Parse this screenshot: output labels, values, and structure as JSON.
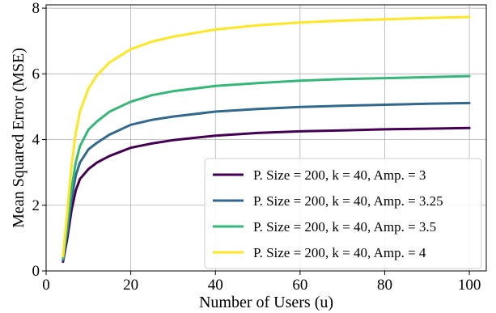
{
  "chart_data": {
    "type": "line",
    "title": "",
    "xlabel": "Number of Users (u)",
    "ylabel": "Mean Squared Error (MSE)",
    "xlim": [
      0,
      104
    ],
    "ylim": [
      0,
      8.1
    ],
    "xticks": [
      0,
      20,
      40,
      60,
      80,
      100
    ],
    "yticks": [
      0,
      2,
      4,
      6,
      8
    ],
    "grid": true,
    "legend_position": "lower-right",
    "x": [
      4,
      5,
      6,
      7,
      8,
      10,
      12,
      15,
      20,
      25,
      30,
      40,
      50,
      60,
      70,
      80,
      90,
      100
    ],
    "series": [
      {
        "name": "P. Size = 200, k = 40, Amp. = 3",
        "color": "#440154",
        "values": [
          0.28,
          1.0,
          1.85,
          2.45,
          2.8,
          3.1,
          3.3,
          3.5,
          3.75,
          3.88,
          3.98,
          4.12,
          4.2,
          4.25,
          4.28,
          4.31,
          4.33,
          4.35
        ]
      },
      {
        "name": "P. Size = 200, k = 40, Amp. = 3.25",
        "color": "#31688e",
        "values": [
          0.33,
          1.2,
          2.2,
          2.9,
          3.3,
          3.7,
          3.9,
          4.15,
          4.45,
          4.6,
          4.7,
          4.85,
          4.93,
          4.99,
          5.03,
          5.06,
          5.09,
          5.11
        ]
      },
      {
        "name": "P. Size = 200, k = 40, Amp. = 3.5",
        "color": "#35b779",
        "values": [
          0.38,
          1.4,
          2.5,
          3.3,
          3.8,
          4.3,
          4.55,
          4.85,
          5.15,
          5.35,
          5.47,
          5.63,
          5.72,
          5.79,
          5.84,
          5.87,
          5.9,
          5.93
        ]
      },
      {
        "name": "P. Size = 200, k = 40, Amp. = 4",
        "color": "#fde725",
        "values": [
          0.45,
          1.8,
          3.2,
          4.2,
          4.85,
          5.55,
          5.95,
          6.35,
          6.75,
          6.98,
          7.13,
          7.35,
          7.48,
          7.56,
          7.62,
          7.66,
          7.7,
          7.73
        ]
      }
    ]
  }
}
